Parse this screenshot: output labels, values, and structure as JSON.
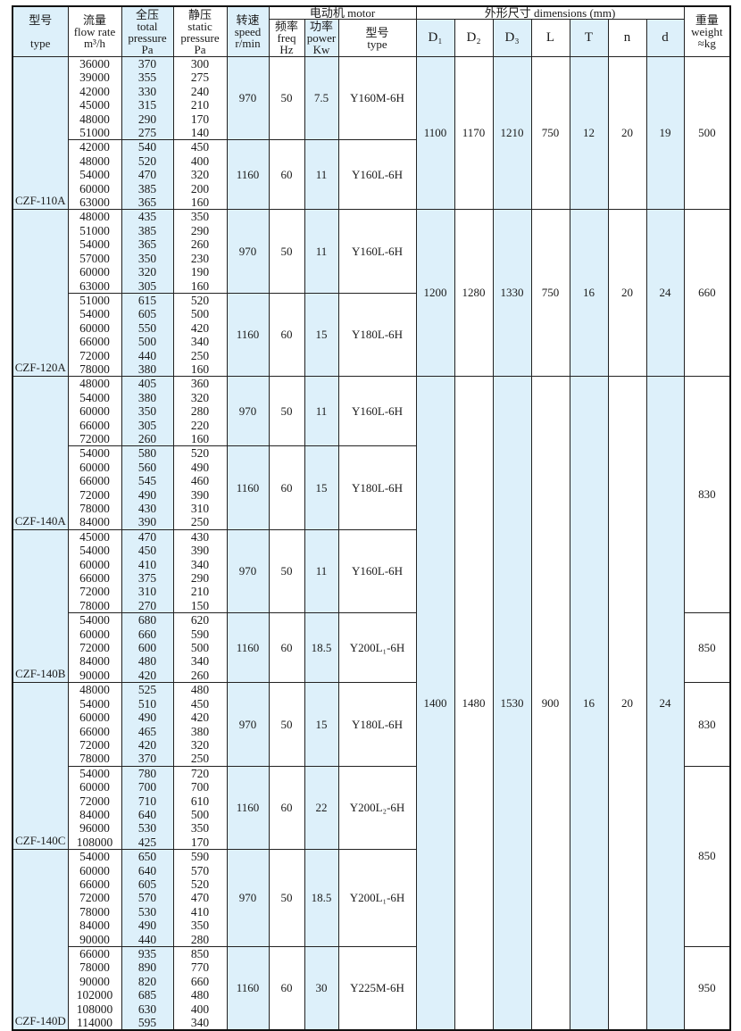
{
  "header": {
    "type": {
      "zh": "型号",
      "en": "type"
    },
    "flow": {
      "zh": "流量",
      "en": "flow rate",
      "unit": "m³/h"
    },
    "total": {
      "zh": "全压",
      "en": "total pressure",
      "unit": "Pa"
    },
    "static": {
      "zh": "静压",
      "en": "static pressure",
      "unit": "Pa"
    },
    "speed": {
      "zh": "转速",
      "en": "speed",
      "unit": "r/min"
    },
    "motor": {
      "title": "电动机  motor",
      "freq": {
        "zh": "频率",
        "en": "freq",
        "unit": "Hz"
      },
      "power": {
        "zh": "功率",
        "en": "power",
        "unit": "Kw"
      },
      "model": {
        "zh": "型号",
        "en": "type"
      }
    },
    "dimensions": {
      "title": "外形尺寸   dimensions (mm)",
      "cols": [
        "D₁",
        "D₂",
        "D₃",
        "L",
        "T",
        "n",
        "d"
      ]
    },
    "weight": {
      "zh": "重量",
      "en": "weight",
      "unit": "≈kg"
    }
  },
  "colors": {
    "highlight": "#ddf0fa",
    "border": "#222222"
  },
  "models": [
    {
      "type": "CZF-110A",
      "dims": [
        "1100",
        "1170",
        "1210",
        "750",
        "12",
        "20",
        "19"
      ],
      "groups": [
        {
          "speed": "970",
          "freq": "50",
          "power": "7.5",
          "motor": "Y160M-6H",
          "flow": [
            "36000",
            "39000",
            "42000",
            "45000",
            "48000",
            "51000"
          ],
          "total": [
            "370",
            "355",
            "330",
            "315",
            "290",
            "275"
          ],
          "static": [
            "300",
            "275",
            "240",
            "210",
            "170",
            "140"
          ]
        },
        {
          "speed": "1160",
          "freq": "60",
          "power": "11",
          "motor": "Y160L-6H",
          "flow": [
            "42000",
            "48000",
            "54000",
            "60000",
            "63000"
          ],
          "total": [
            "540",
            "520",
            "470",
            "385",
            "365"
          ],
          "static": [
            "450",
            "400",
            "320",
            "200",
            "160"
          ]
        }
      ]
    },
    {
      "type": "CZF-120A",
      "dims": [
        "1200",
        "1280",
        "1330",
        "750",
        "16",
        "20",
        "24"
      ],
      "groups": [
        {
          "speed": "970",
          "freq": "50",
          "power": "11",
          "motor": "Y160L-6H",
          "flow": [
            "48000",
            "51000",
            "54000",
            "57000",
            "60000",
            "63000"
          ],
          "total": [
            "435",
            "385",
            "365",
            "350",
            "320",
            "305"
          ],
          "static": [
            "350",
            "290",
            "260",
            "230",
            "190",
            "160"
          ]
        },
        {
          "speed": "1160",
          "freq": "60",
          "power": "15",
          "motor": "Y180L-6H",
          "flow": [
            "51000",
            "54000",
            "60000",
            "66000",
            "72000",
            "78000"
          ],
          "total": [
            "615",
            "605",
            "550",
            "500",
            "440",
            "380"
          ],
          "static": [
            "520",
            "500",
            "420",
            "340",
            "250",
            "160"
          ]
        }
      ]
    },
    {
      "type": "CZF-140A",
      "dims": [
        "1400",
        "1480",
        "1530",
        "900",
        "16",
        "20",
        "24"
      ],
      "groups": [
        {
          "speed": "970",
          "freq": "50",
          "power": "11",
          "motor": "Y160L-6H",
          "flow": [
            "48000",
            "54000",
            "60000",
            "66000",
            "72000"
          ],
          "total": [
            "405",
            "380",
            "350",
            "305",
            "260"
          ],
          "static": [
            "360",
            "320",
            "280",
            "220",
            "160"
          ]
        },
        {
          "speed": "1160",
          "freq": "60",
          "power": "15",
          "motor": "Y180L-6H",
          "flow": [
            "54000",
            "60000",
            "66000",
            "72000",
            "78000",
            "84000"
          ],
          "total": [
            "580",
            "560",
            "545",
            "490",
            "430",
            "390"
          ],
          "static": [
            "520",
            "490",
            "460",
            "390",
            "310",
            "250"
          ]
        }
      ]
    },
    {
      "type": "CZF-140B",
      "groups": [
        {
          "speed": "970",
          "freq": "50",
          "power": "11",
          "motor": "Y160L-6H",
          "flow": [
            "45000",
            "54000",
            "60000",
            "66000",
            "72000",
            "78000"
          ],
          "total": [
            "470",
            "450",
            "410",
            "375",
            "310",
            "270"
          ],
          "static": [
            "430",
            "390",
            "340",
            "290",
            "210",
            "150"
          ]
        },
        {
          "speed": "1160",
          "freq": "60",
          "power": "18.5",
          "motor": "Y200L₁-6H",
          "flow": [
            "54000",
            "60000",
            "72000",
            "84000",
            "90000"
          ],
          "total": [
            "680",
            "660",
            "600",
            "480",
            "420"
          ],
          "static": [
            "620",
            "590",
            "500",
            "340",
            "260"
          ]
        }
      ]
    },
    {
      "type": "CZF-140C",
      "groups": [
        {
          "speed": "970",
          "freq": "50",
          "power": "15",
          "motor": "Y180L-6H",
          "flow": [
            "48000",
            "54000",
            "60000",
            "66000",
            "72000",
            "78000"
          ],
          "total": [
            "525",
            "510",
            "490",
            "465",
            "420",
            "370"
          ],
          "static": [
            "480",
            "450",
            "420",
            "380",
            "320",
            "250"
          ]
        },
        {
          "speed": "1160",
          "freq": "60",
          "power": "22",
          "motor": "Y200L₂-6H",
          "flow": [
            "54000",
            "60000",
            "72000",
            "84000",
            "96000",
            "108000"
          ],
          "total": [
            "780",
            "700",
            "710",
            "640",
            "530",
            "425"
          ],
          "static": [
            "720",
            "700",
            "610",
            "500",
            "350",
            "170"
          ]
        }
      ]
    },
    {
      "type": "CZF-140D",
      "groups": [
        {
          "speed": "970",
          "freq": "50",
          "power": "18.5",
          "motor": "Y200L₁-6H",
          "flow": [
            "54000",
            "60000",
            "66000",
            "72000",
            "78000",
            "84000",
            "90000"
          ],
          "total": [
            "650",
            "640",
            "605",
            "570",
            "530",
            "490",
            "440"
          ],
          "static": [
            "590",
            "570",
            "520",
            "470",
            "410",
            "350",
            "280"
          ]
        },
        {
          "speed": "1160",
          "freq": "60",
          "power": "30",
          "motor": "Y225M-6H",
          "flow": [
            "66000",
            "78000",
            "90000",
            "102000",
            "108000",
            "114000"
          ],
          "total": [
            "935",
            "890",
            "820",
            "685",
            "630",
            "595"
          ],
          "static": [
            "850",
            "770",
            "660",
            "480",
            "400",
            "340"
          ]
        }
      ]
    }
  ],
  "weights": [
    {
      "value": "500",
      "groups": 2
    },
    {
      "value": "660",
      "groups": 2
    },
    {
      "value": "830",
      "groups": 3
    },
    {
      "value": "850",
      "groups": 1
    },
    {
      "value": "830",
      "groups": 1
    },
    {
      "value": "850",
      "groups": 2
    },
    {
      "value": "950",
      "groups": 1
    }
  ]
}
